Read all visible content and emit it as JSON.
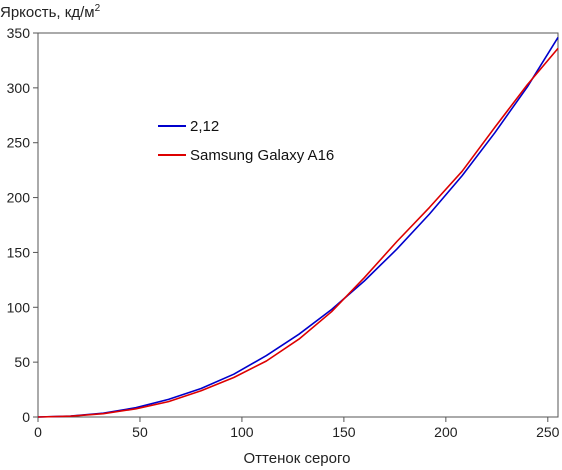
{
  "chart_data": {
    "type": "line",
    "ylabel": "Яркость, кд/м",
    "ylabel_sup": "2",
    "xlabel": "Оттенок серого",
    "xlim": [
      0,
      255
    ],
    "ylim": [
      0,
      350
    ],
    "x_ticks": [
      0,
      50,
      100,
      150,
      200,
      250
    ],
    "y_ticks": [
      0,
      50,
      100,
      150,
      200,
      250,
      300,
      350
    ],
    "grid": false,
    "legend_position": "upper-left-inside",
    "series": [
      {
        "name": "2,12",
        "color": "#0000cc",
        "x": [
          0,
          16,
          32,
          48,
          64,
          80,
          96,
          112,
          128,
          144,
          160,
          176,
          192,
          208,
          224,
          240,
          255
        ],
        "y": [
          0,
          0.8,
          3.5,
          8.5,
          16,
          26,
          39,
          56,
          75.5,
          98,
          124,
          153,
          185,
          220,
          259,
          301,
          346
        ]
      },
      {
        "name": "Samsung Galaxy A16",
        "color": "#dd0000",
        "x": [
          0,
          16,
          32,
          48,
          64,
          80,
          96,
          112,
          128,
          144,
          160,
          176,
          192,
          208,
          224,
          240,
          255
        ],
        "y": [
          0,
          0.7,
          3,
          7.5,
          14,
          24,
          36,
          51,
          71,
          96,
          127,
          160,
          191,
          224,
          264,
          303,
          336
        ]
      }
    ]
  }
}
